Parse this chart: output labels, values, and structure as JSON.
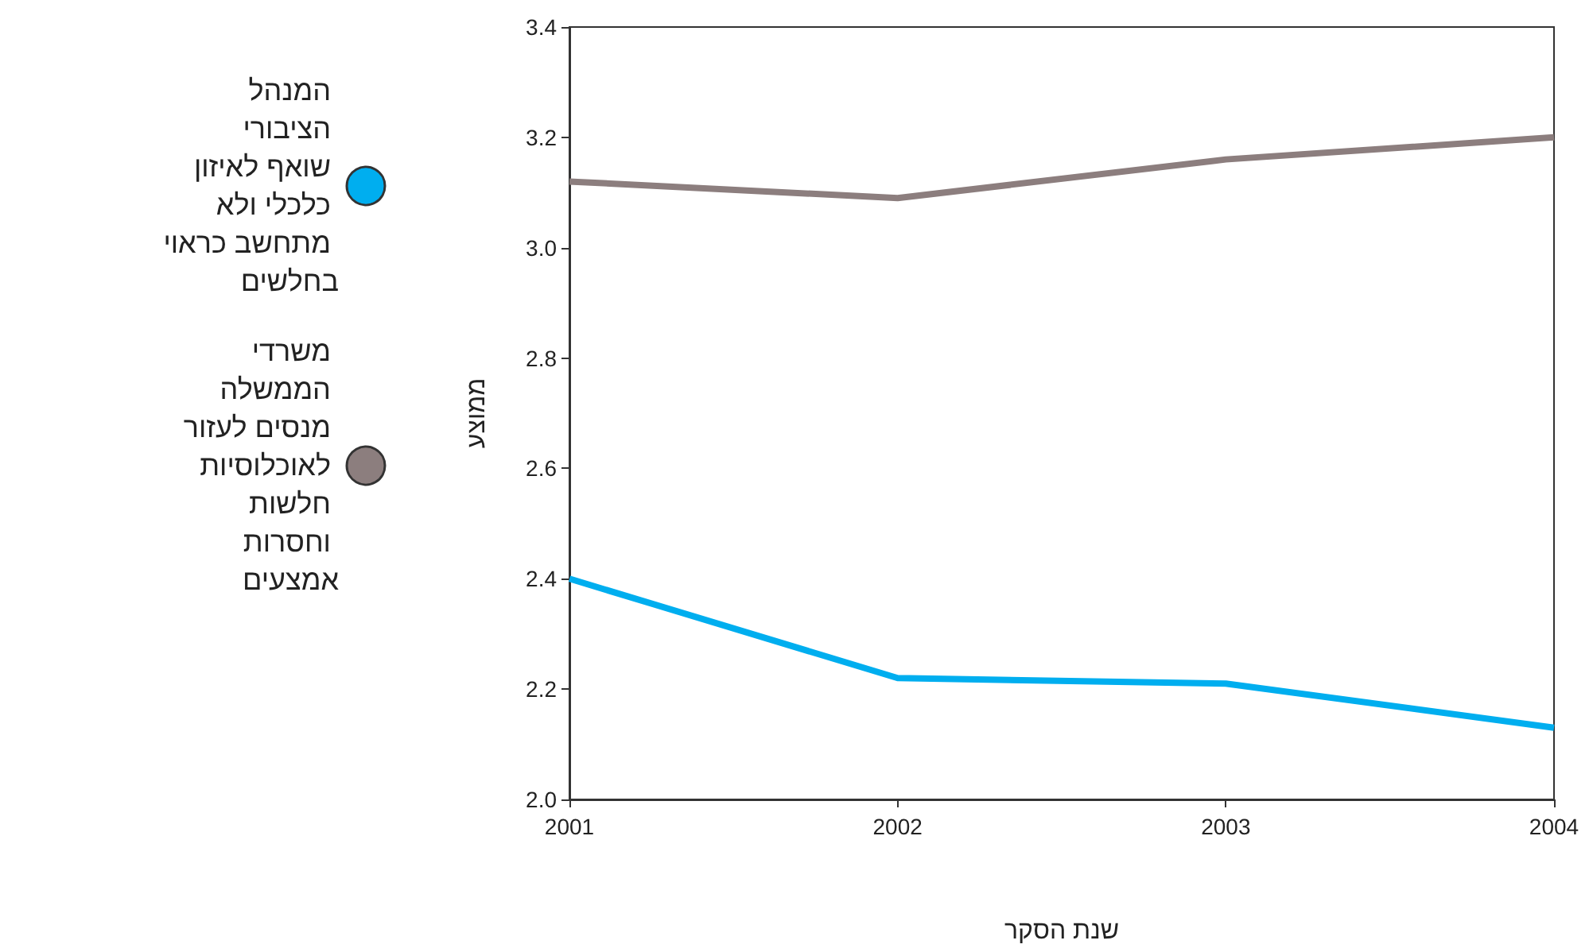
{
  "chart_data": {
    "type": "line",
    "xlabel": "שנת הסקר",
    "ylabel": "ממוצע",
    "x": [
      2001,
      2002,
      2003,
      2004
    ],
    "series": [
      {
        "name": "המנהל הציבורי שואף לאיזון כלכלי ולא מתחשב כראוי בחלשים",
        "color": "#00aeef",
        "values": [
          2.4,
          2.22,
          2.21,
          2.13
        ]
      },
      {
        "name": "משרדי הממשלה מנסים לעזור לאוכלוסיות חלשות וחסרות אמצעים",
        "color": "#8c7e7e",
        "values": [
          3.12,
          3.09,
          3.16,
          3.2
        ]
      }
    ],
    "xlim": [
      2001,
      2004
    ],
    "xticks": [
      2001,
      2002,
      2003,
      2004
    ],
    "ylim": [
      2.0,
      3.4
    ],
    "yticks": [
      {
        "value": 2,
        "label": "2.0"
      },
      2.2,
      2.4,
      2.6,
      2.8,
      {
        "value": 3,
        "label": "3.0"
      },
      3.2,
      3.4
    ],
    "grid": false,
    "legend": "left",
    "marker": "none",
    "line_style": "solid"
  }
}
